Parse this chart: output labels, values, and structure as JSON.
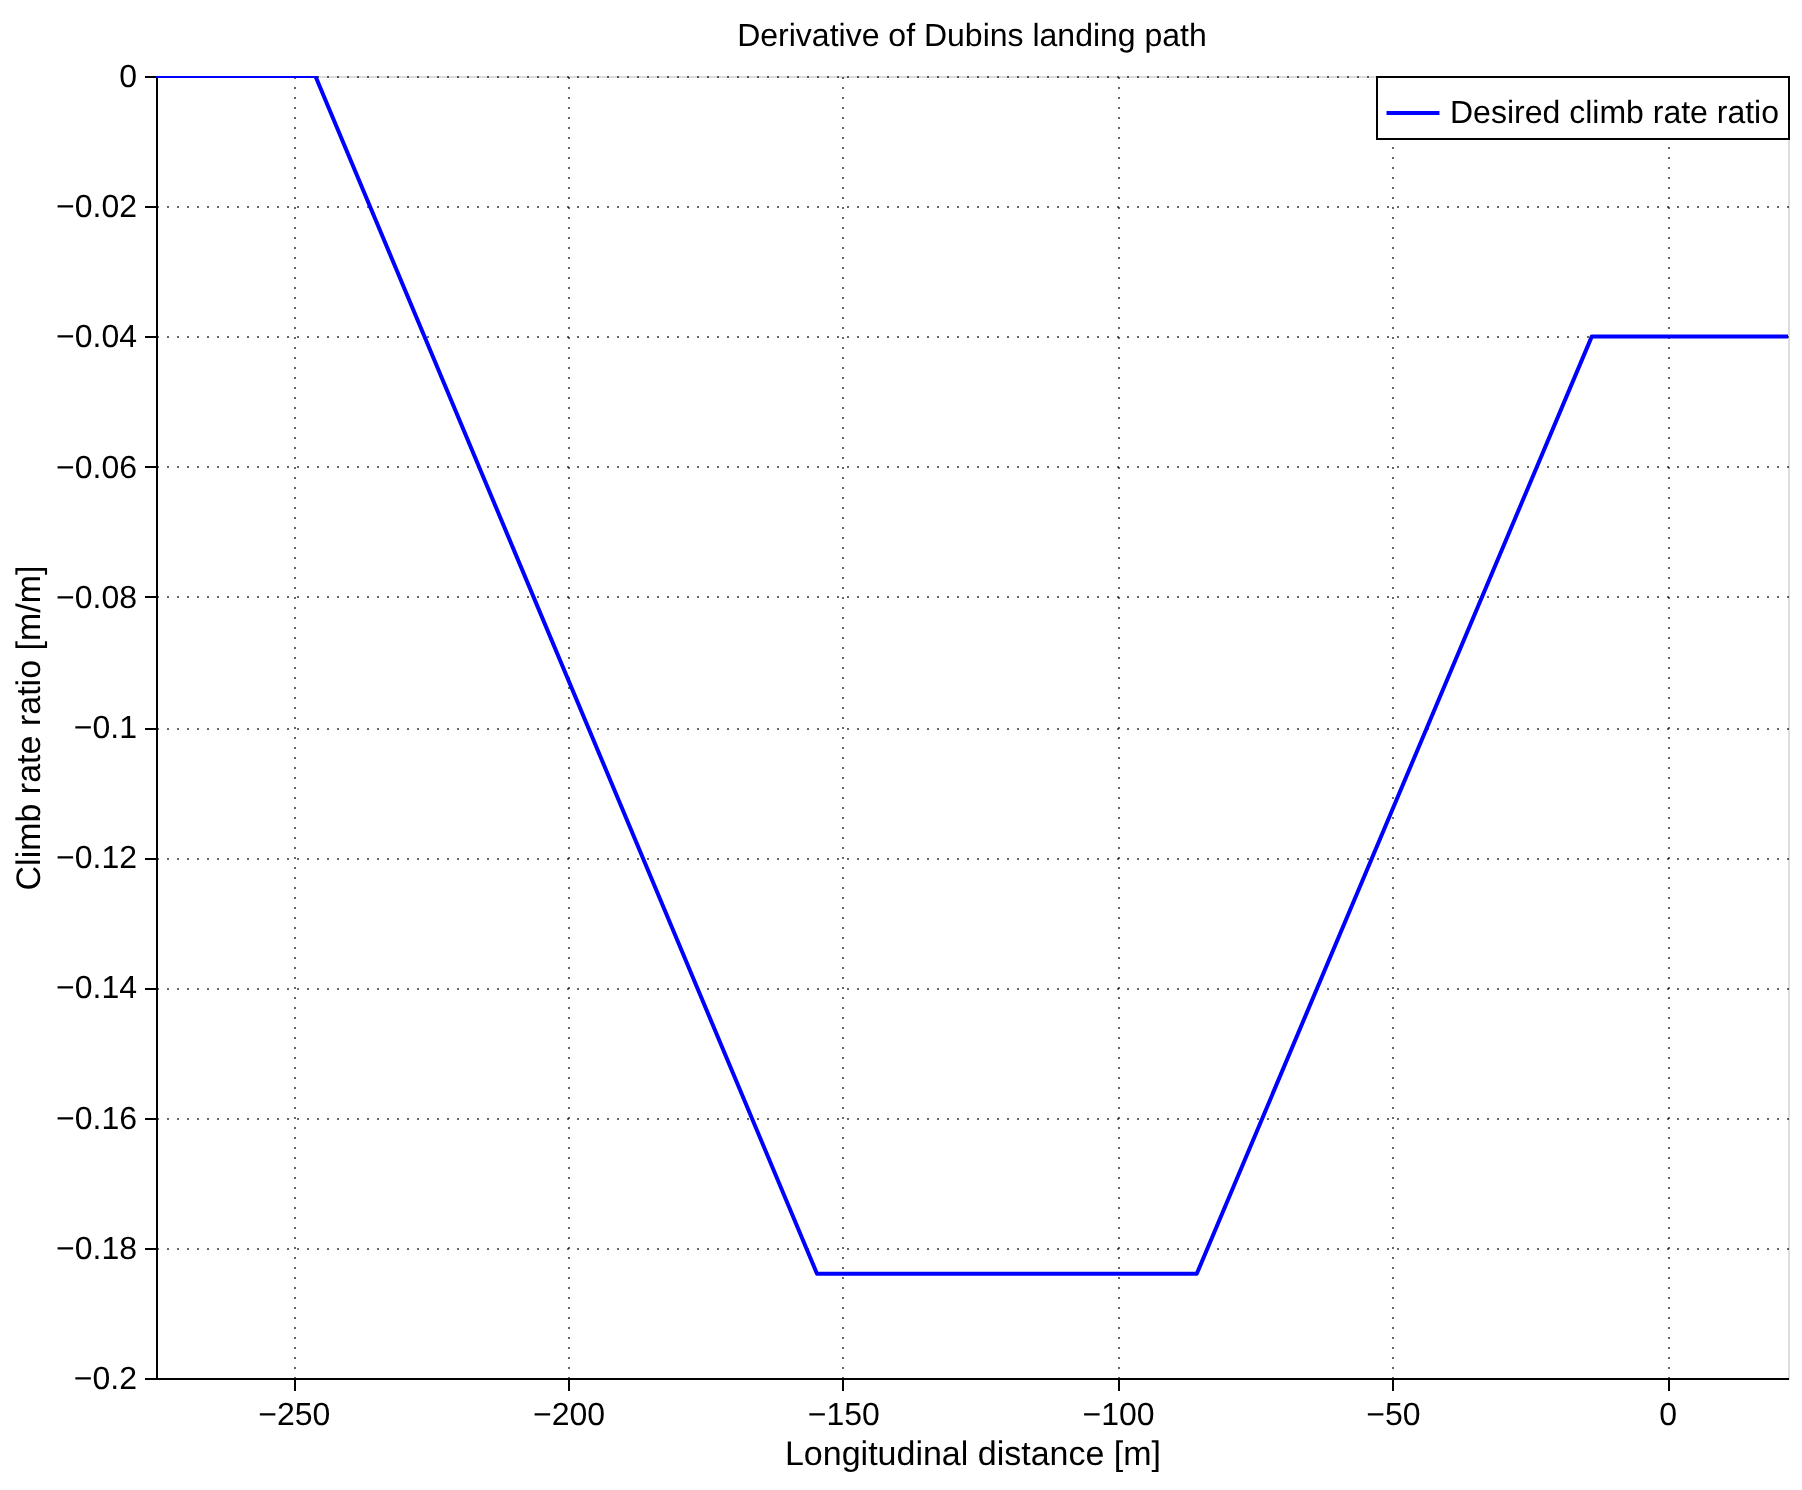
{
  "chart_data": {
    "type": "line",
    "title": "Derivative of Dubins landing path",
    "xlabel": "Longitudinal distance [m]",
    "ylabel": "Climb rate ratio [m/m]",
    "series": [
      {
        "name": "Desired climb rate ratio",
        "color": "#0000ff",
        "x": [
          -275,
          -246,
          -154.7,
          -85.6,
          -13.7,
          22
        ],
        "values": [
          0,
          0,
          -0.184,
          -0.184,
          -0.04,
          -0.04
        ]
      }
    ],
    "xlim": [
      -275,
      22
    ],
    "xticks": [
      -250,
      -200,
      -150,
      -100,
      -50,
      0
    ],
    "ylim": [
      -0.2,
      0
    ],
    "yticks": [
      -0.2,
      -0.18,
      -0.16,
      -0.14,
      -0.12,
      -0.1,
      -0.08,
      -0.06,
      -0.04,
      -0.02,
      0
    ],
    "grid": true,
    "legend": "top right",
    "line_style": "solid",
    "marker": "none"
  }
}
